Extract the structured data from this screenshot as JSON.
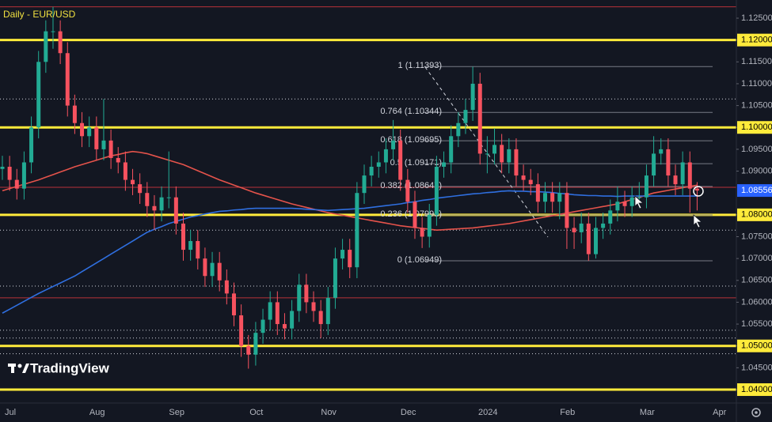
{
  "chart_data": {
    "type": "candlestick",
    "title": "Daily - EUR/USD",
    "watermark": "TradingView",
    "categories": [
      "Jul",
      null,
      null,
      null,
      null,
      null,
      null,
      null,
      null,
      null,
      null,
      null,
      "Aug",
      null,
      null,
      null,
      null,
      null,
      null,
      null,
      null,
      null,
      null,
      "Sep",
      null,
      null,
      null,
      null,
      null,
      null,
      null,
      null,
      null,
      null,
      "Oct",
      null,
      null,
      null,
      null,
      null,
      null,
      null,
      null,
      null,
      "Nov",
      null,
      null,
      null,
      null,
      null,
      null,
      null,
      null,
      null,
      null,
      "Dec",
      null,
      null,
      null,
      null,
      null,
      null,
      null,
      null,
      null,
      null,
      "2024",
      null,
      null,
      null,
      null,
      null,
      null,
      null,
      null,
      null,
      null,
      "Feb",
      null,
      null,
      null,
      null,
      null,
      null,
      null,
      null,
      null,
      null,
      "Mar",
      null,
      null,
      null,
      null,
      null,
      null,
      null,
      null,
      null,
      "Apr"
    ],
    "open": [
      1.0905,
      1.091,
      1.088,
      1.086,
      1.092,
      1.1,
      1.115,
      1.122,
      1.122,
      1.117,
      1.105,
      1.101,
      1.098,
      1.1,
      1.095,
      1.097,
      1.093,
      1.092,
      1.088,
      1.087,
      1.085,
      1.082,
      1.081,
      1.084,
      1.084,
      1.078,
      1.072,
      1.074,
      1.07,
      1.066,
      1.069,
      1.065,
      1.062,
      1.057,
      1.05,
      1.048,
      1.053,
      1.056,
      1.06,
      1.055,
      1.054,
      1.058,
      1.064,
      1.06,
      1.058,
      1.055,
      1.061,
      1.07,
      1.072,
      1.068,
      1.085,
      1.089,
      1.091,
      1.092,
      1.095,
      1.097,
      1.088,
      1.083,
      1.077,
      1.075,
      1.08,
      1.091,
      1.092,
      1.098,
      1.101,
      1.104,
      1.11,
      1.094,
      1.094,
      1.096,
      1.092,
      1.095,
      1.089,
      1.088,
      1.087,
      1.083,
      1.085,
      1.083,
      1.085,
      1.077,
      1.076,
      1.078,
      1.071,
      1.077,
      1.078,
      1.081,
      1.083,
      1.082,
      1.084,
      1.084,
      1.089,
      1.094,
      1.095,
      1.089,
      1.087,
      1.092,
      1.086,
      null,
      null
    ],
    "high": [
      1.0935,
      1.0935,
      1.0905,
      1.0945,
      1.1025,
      1.1175,
      1.1245,
      1.1276,
      1.1245,
      1.1195,
      1.1075,
      1.1035,
      1.1025,
      1.1025,
      1.1065,
      1.0995,
      1.0955,
      1.0945,
      1.0905,
      1.0895,
      1.0875,
      1.0845,
      1.0865,
      1.0945,
      1.0865,
      1.0805,
      1.0765,
      1.0765,
      1.0725,
      1.0715,
      1.0715,
      1.0675,
      1.0645,
      1.0595,
      1.0525,
      1.0555,
      1.0585,
      1.0625,
      1.0625,
      1.0575,
      1.0605,
      1.0665,
      1.0665,
      1.0625,
      1.0605,
      1.0635,
      1.0725,
      1.0745,
      1.0745,
      1.0875,
      1.0915,
      1.0935,
      1.0945,
      1.0975,
      1.1017,
      1.0995,
      1.0905,
      1.0855,
      1.0795,
      1.0825,
      1.0935,
      1.0945,
      1.1005,
      1.1035,
      1.1065,
      1.1139,
      1.1125,
      1.098,
      1.0998,
      1.0985,
      1.0975,
      1.0975,
      1.0915,
      1.0905,
      1.0895,
      1.0875,
      1.0875,
      1.0875,
      1.0875,
      1.0795,
      1.0805,
      1.0805,
      1.0795,
      1.0805,
      1.0835,
      1.0865,
      1.0855,
      1.0865,
      1.0875,
      1.0915,
      1.098,
      1.0975,
      1.0975,
      1.0915,
      1.0945,
      1.0945,
      1.0875,
      null,
      null
    ],
    "low": [
      1.088,
      1.0855,
      1.0835,
      1.0835,
      1.0895,
      1.0975,
      1.1125,
      1.118,
      1.1145,
      1.1025,
      1.0985,
      1.0955,
      1.0955,
      1.0925,
      1.0925,
      1.0905,
      1.0895,
      1.0855,
      1.0845,
      1.0825,
      1.0795,
      1.0765,
      1.0785,
      1.0815,
      1.0755,
      1.0695,
      1.0695,
      1.0675,
      1.0635,
      1.0635,
      1.0625,
      1.0595,
      1.0545,
      1.0475,
      1.0448,
      1.0455,
      1.0505,
      1.0535,
      1.0525,
      1.0515,
      1.0515,
      1.0555,
      1.0575,
      1.0555,
      1.0518,
      1.0525,
      1.0585,
      1.0675,
      1.0655,
      1.0655,
      1.0825,
      1.0865,
      1.0885,
      1.0895,
      1.0925,
      1.0855,
      1.0805,
      1.0745,
      1.0724,
      1.0725,
      1.0775,
      1.0885,
      1.0895,
      1.0955,
      1.0985,
      1.1015,
      1.0915,
      1.0895,
      1.0915,
      1.0895,
      1.0895,
      1.0865,
      1.0855,
      1.0845,
      1.0805,
      1.0805,
      1.0805,
      1.079,
      1.0722,
      1.0722,
      1.0735,
      1.0695,
      1.07,
      1.0745,
      1.0755,
      1.0785,
      1.0795,
      1.0795,
      1.0815,
      1.0815,
      1.0865,
      1.0915,
      1.0865,
      1.0845,
      1.0845,
      1.0805,
      1.081,
      null,
      null
    ],
    "close": [
      1.091,
      1.088,
      1.086,
      1.092,
      1.1,
      1.115,
      1.122,
      1.122,
      1.117,
      1.105,
      1.101,
      1.098,
      1.1,
      1.095,
      1.097,
      1.093,
      1.092,
      1.088,
      1.087,
      1.085,
      1.082,
      1.081,
      1.084,
      1.084,
      1.078,
      1.072,
      1.074,
      1.07,
      1.066,
      1.069,
      1.065,
      1.062,
      1.057,
      1.05,
      1.048,
      1.053,
      1.056,
      1.06,
      1.055,
      1.054,
      1.058,
      1.064,
      1.06,
      1.058,
      1.055,
      1.061,
      1.07,
      1.072,
      1.068,
      1.085,
      1.089,
      1.091,
      1.092,
      1.095,
      1.097,
      1.088,
      1.083,
      1.077,
      1.075,
      1.08,
      1.091,
      1.092,
      1.098,
      1.101,
      1.104,
      1.11,
      1.094,
      1.094,
      1.096,
      1.092,
      1.095,
      1.089,
      1.088,
      1.087,
      1.083,
      1.085,
      1.083,
      1.085,
      1.077,
      1.076,
      1.078,
      1.071,
      1.077,
      1.078,
      1.081,
      1.083,
      1.082,
      1.084,
      1.084,
      1.089,
      1.094,
      1.095,
      1.089,
      1.087,
      1.092,
      1.086,
      1.08556,
      null,
      null
    ],
    "up_color": "#22ab94",
    "down_color": "#f7525f",
    "lines": [
      {
        "color": "#e5534b",
        "values": [
          1.0855,
          1.086,
          1.0865,
          1.087,
          1.0875,
          1.088,
          1.0886,
          1.0892,
          1.0898,
          1.0904,
          1.091,
          1.0915,
          1.092,
          1.0925,
          1.093,
          1.0935,
          1.0938,
          1.0942,
          1.0945,
          1.0943,
          1.094,
          1.0935,
          1.093,
          1.0925,
          1.092,
          1.0915,
          1.0908,
          1.0901,
          1.0894,
          1.0887,
          1.088,
          1.0874,
          1.0868,
          1.0862,
          1.0856,
          1.085,
          1.0845,
          1.084,
          1.0835,
          1.083,
          1.0825,
          1.0821,
          1.0817,
          1.0813,
          1.0809,
          1.0805,
          1.0802,
          1.0799,
          1.0796,
          1.0793,
          1.079,
          1.0787,
          1.0784,
          1.0781,
          1.0778,
          1.0775,
          1.0773,
          1.0771,
          1.0769,
          1.0767,
          1.0765,
          1.0766,
          1.0767,
          1.0768,
          1.0769,
          1.077,
          1.0772,
          1.0774,
          1.0776,
          1.0778,
          1.078,
          1.0783,
          1.0786,
          1.0789,
          1.0792,
          1.0795,
          1.0798,
          1.0801,
          1.0804,
          1.0807,
          1.081,
          1.0813,
          1.0816,
          1.0819,
          1.0822,
          1.0825,
          1.083,
          1.0835,
          1.084,
          1.0845,
          1.085,
          1.0853,
          1.0856,
          1.0859,
          1.0862,
          1.0865,
          1.0868,
          null,
          null
        ]
      },
      {
        "color": "#2f6fe0",
        "values": [
          1.0575,
          1.0584,
          1.0593,
          1.0602,
          1.0611,
          1.062,
          1.0628,
          1.0636,
          1.0644,
          1.0652,
          1.066,
          1.067,
          1.068,
          1.069,
          1.07,
          1.071,
          1.072,
          1.073,
          1.074,
          1.075,
          1.076,
          1.0767,
          1.0773,
          1.078,
          1.0785,
          1.079,
          1.0795,
          1.0798,
          1.0802,
          1.0805,
          1.0808,
          1.0809,
          1.0811,
          1.0812,
          1.0814,
          1.0815,
          1.0815,
          1.0815,
          1.0815,
          1.0815,
          1.0815,
          1.0814,
          1.0813,
          1.0812,
          1.0811,
          1.081,
          1.0811,
          1.0812,
          1.0813,
          1.0814,
          1.0815,
          1.0817,
          1.0819,
          1.0821,
          1.0823,
          1.0825,
          1.0828,
          1.083,
          1.0833,
          1.0835,
          1.0838,
          1.084,
          1.0842,
          1.0844,
          1.0846,
          1.0848,
          1.0849,
          1.0851,
          1.0852,
          1.0854,
          1.0855,
          1.0854,
          1.0854,
          1.0853,
          1.0853,
          1.0852,
          1.0851,
          1.0849,
          1.0848,
          1.0846,
          1.0845,
          1.0844,
          1.0844,
          1.0843,
          1.0843,
          1.0842,
          1.0843,
          1.0843,
          1.0843,
          1.0843,
          1.0843,
          1.0843,
          1.0843,
          1.0843,
          1.0843,
          1.0843,
          1.0843,
          null,
          null
        ]
      }
    ],
    "ylim": [
      1.03693,
      1.12916
    ],
    "yticks": [
      {
        "value": 1.125,
        "label": "1.12500"
      },
      {
        "value": 1.12,
        "label": "1.12000"
      },
      {
        "value": 1.115,
        "label": "1.11500"
      },
      {
        "value": 1.11,
        "label": "1.11000"
      },
      {
        "value": 1.105,
        "label": "1.10500"
      },
      {
        "value": 1.1,
        "label": "1.10000"
      },
      {
        "value": 1.095,
        "label": "1.09500"
      },
      {
        "value": 1.09,
        "label": "1.09000"
      },
      {
        "value": 1.08,
        "label": "1.08000"
      },
      {
        "value": 1.075,
        "label": "1.07500"
      },
      {
        "value": 1.07,
        "label": "1.07000"
      },
      {
        "value": 1.065,
        "label": "1.06500"
      },
      {
        "value": 1.06,
        "label": "1.06000"
      },
      {
        "value": 1.055,
        "label": "1.05500"
      },
      {
        "value": 1.05,
        "label": "1.05000"
      },
      {
        "value": 1.045,
        "label": "1.04500"
      },
      {
        "value": 1.04,
        "label": "1.04000"
      }
    ],
    "last_price": {
      "value": 1.08556,
      "label": "1.08556",
      "color": "#2962ff"
    },
    "key_levels": {
      "color": "#ffeb3b",
      "values": [
        1.12,
        1.1,
        1.08,
        1.05,
        1.04
      ]
    },
    "red_levels": {
      "color": "#b8323a",
      "values": [
        1.1276,
        1.0863,
        1.061
      ]
    },
    "dotted_levels": {
      "color": "#d1d4dc",
      "values": [
        1.1065,
        1.0765,
        1.0637,
        1.0536,
        1.0518,
        1.0482
      ]
    },
    "fib_levels": {
      "color": "#787b86",
      "levels": [
        {
          "value": 1.11393,
          "label": "1 (1.11393)"
        },
        {
          "value": 1.10344,
          "label": "0.764 (1.10344)"
        },
        {
          "value": 1.09695,
          "label": "0.618 (1.09695)"
        },
        {
          "value": 1.09171,
          "label": "0.5 (1.09171)"
        },
        {
          "value": 1.08647,
          "label": "0.382 (1.08647)"
        },
        {
          "value": 1.07998,
          "label": "0.236 (1.07998)"
        },
        {
          "value": 1.06949,
          "label": "0 (1.06949)"
        }
      ]
    }
  }
}
